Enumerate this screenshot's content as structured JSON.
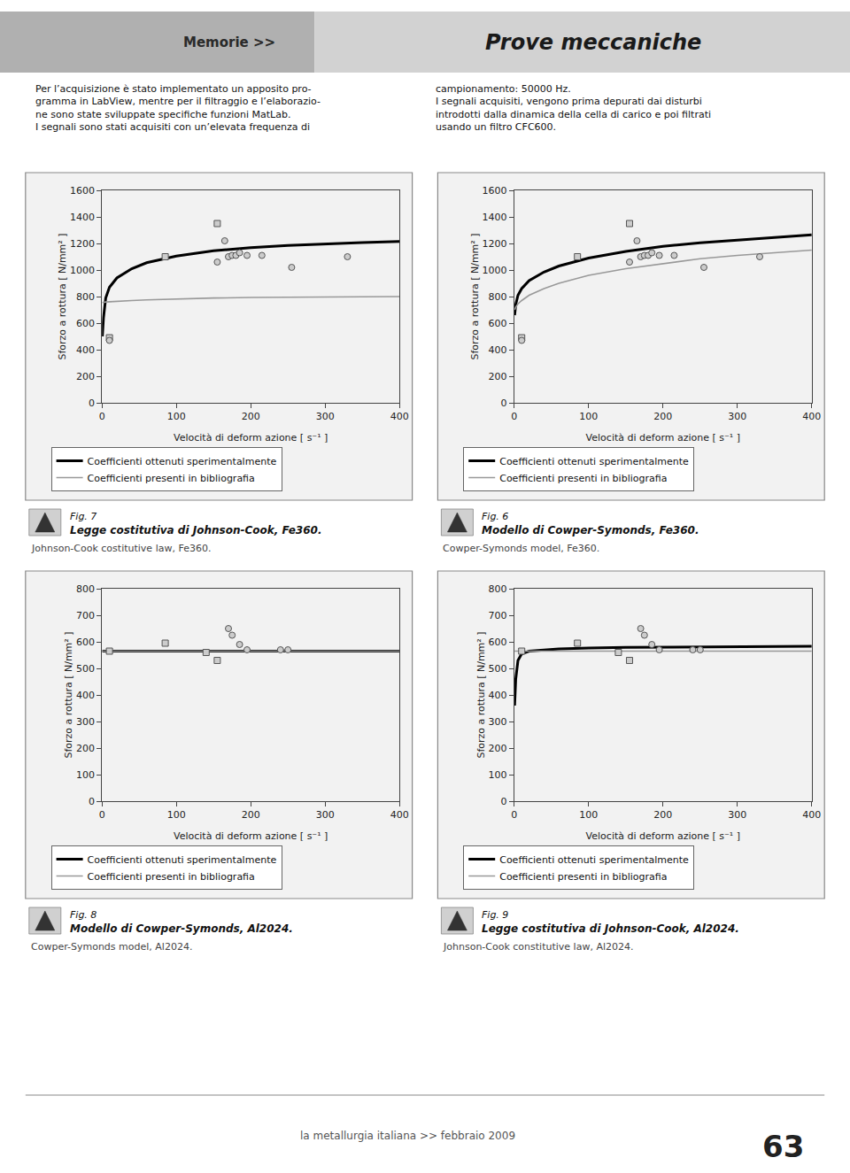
{
  "annotations": [
    "Memorie >>",
    "Prove meccaniche",
    "Per l’acquisizione è stato implementato un apposito pro-\ngramma in LabView, mentre per il filtraggio e l’elaborazio-\nne sono state sviluppate specifiche funzioni MatLab.\nI segnali sono stati acquisiti con un’elevata frequenza di",
    "campionamento: 50000 Hz.\nI segnali acquisiti, vengono prima depurati dai disturbi\nintrodotti dalla dinamica della cella di carico e poi filtrati\nusando un filtro CFC600.",
    "la metallurgia italiana >> febbraio 2009",
    "63"
  ],
  "chart_data": [
    {
      "type": "line",
      "title": "Legge costitutiva di Johnson-Cook, Fe360.",
      "subtitle": "Johnson-Cook costitutive law, Fe360.",
      "annotations": [
        "Fig. 7"
      ],
      "xlabel": "Velocità di deform azione [ s⁻¹ ]",
      "ylabel": "Sforzo a rottura [ N/mm² ]",
      "xlim": [
        0,
        400
      ],
      "xticks": [
        0,
        100,
        200,
        300,
        400
      ],
      "ylim": [
        0,
        1600
      ],
      "yticks": [
        0,
        200,
        400,
        600,
        800,
        1000,
        1200,
        1400,
        1600
      ],
      "grid": false,
      "legend": "bottom",
      "series": [
        {
          "name": "Coefficienti ottenuti sperimentalmente",
          "type": "line",
          "color": "#000000",
          "x": [
            0.5,
            2,
            5,
            10,
            20,
            40,
            60,
            80,
            100,
            150,
            200,
            250,
            300,
            350,
            400
          ],
          "values": [
            500,
            640,
            790,
            870,
            940,
            1010,
            1055,
            1080,
            1105,
            1145,
            1168,
            1185,
            1198,
            1207,
            1215
          ]
        },
        {
          "name": "Coefficienti presenti in bibliografia",
          "type": "line",
          "color": "#999999",
          "x": [
            0.5,
            2,
            5,
            10,
            20,
            40,
            60,
            80,
            100,
            150,
            200,
            250,
            300,
            350,
            400
          ],
          "values": [
            755,
            757,
            759,
            761,
            765,
            770,
            775,
            779,
            783,
            789,
            793,
            796,
            798,
            799,
            800
          ]
        },
        {
          "type": "scatter",
          "marker": "square",
          "color": "#cccccc",
          "x": [
            10,
            85,
            155
          ],
          "values": [
            490,
            1100,
            1350
          ]
        },
        {
          "type": "scatter",
          "marker": "circle",
          "color": "#cccccc",
          "x": [
            10,
            155,
            165,
            170,
            175,
            180,
            185,
            195,
            215,
            255,
            330
          ],
          "values": [
            470,
            1060,
            1220,
            1100,
            1110,
            1110,
            1130,
            1110,
            1110,
            1020,
            1100
          ]
        }
      ]
    },
    {
      "type": "line",
      "title": "Modello di Cowper-Symonds, Fe360.",
      "subtitle": "Cowper-Symonds model, Fe360.",
      "annotations": [
        "Fig. 6"
      ],
      "xlabel": "Velocità di deform azione [ s⁻¹ ]",
      "ylabel": "Sforzo a rottura [ N/mm² ]",
      "xlim": [
        0,
        400
      ],
      "xticks": [
        0,
        100,
        200,
        300,
        400
      ],
      "ylim": [
        0,
        1600
      ],
      "yticks": [
        0,
        200,
        400,
        600,
        800,
        1000,
        1200,
        1400,
        1600
      ],
      "grid": false,
      "legend": "bottom",
      "series": [
        {
          "name": "Coefficienti ottenuti sperimentalmente",
          "type": "line",
          "color": "#000000",
          "x": [
            0.5,
            2,
            5,
            10,
            20,
            40,
            60,
            80,
            100,
            150,
            200,
            250,
            300,
            350,
            400
          ],
          "values": [
            660,
            740,
            810,
            860,
            920,
            985,
            1030,
            1060,
            1090,
            1140,
            1178,
            1205,
            1225,
            1248,
            1265
          ]
        },
        {
          "name": "Coefficienti presenti in bibliografia",
          "type": "line",
          "color": "#999999",
          "x": [
            0.5,
            2,
            5,
            10,
            20,
            40,
            60,
            80,
            100,
            150,
            200,
            250,
            300,
            350,
            400
          ],
          "values": [
            700,
            720,
            745,
            770,
            810,
            860,
            900,
            930,
            960,
            1010,
            1050,
            1085,
            1110,
            1130,
            1150
          ]
        },
        {
          "type": "scatter",
          "marker": "square",
          "color": "#cccccc",
          "x": [
            10,
            85,
            155
          ],
          "values": [
            490,
            1100,
            1350
          ]
        },
        {
          "type": "scatter",
          "marker": "circle",
          "color": "#cccccc",
          "x": [
            10,
            155,
            165,
            170,
            175,
            180,
            185,
            195,
            215,
            255,
            330
          ],
          "values": [
            470,
            1060,
            1220,
            1100,
            1110,
            1110,
            1130,
            1110,
            1110,
            1020,
            1100
          ]
        }
      ]
    },
    {
      "type": "line",
      "title": "Modello di Cowper-Symonds, Al2024.",
      "subtitle": "Cowper-Symonds model, Al2024.",
      "annotations": [
        "Fig. 8"
      ],
      "xlabel": "Velocità di deform azione [ s⁻¹ ]",
      "ylabel": "Sforzo a rottura [ N/mm² ]",
      "xlim": [
        0,
        400
      ],
      "xticks": [
        0,
        100,
        200,
        300,
        400
      ],
      "ylim": [
        0,
        800
      ],
      "yticks": [
        0,
        100,
        200,
        300,
        400,
        500,
        600,
        700,
        800
      ],
      "grid": false,
      "legend": "bottom",
      "series": [
        {
          "name": "Coefficienti ottenuti sperimentalmente",
          "type": "line",
          "color": "#000000",
          "x": [
            0.5,
            2,
            5,
            10,
            20,
            40,
            60,
            80,
            100,
            150,
            200,
            250,
            300,
            350,
            400
          ],
          "values": [
            565,
            565,
            565,
            565,
            565,
            565,
            565,
            565,
            565,
            565,
            565,
            565,
            565,
            565,
            565
          ]
        },
        {
          "name": "Coefficienti presenti in bibliografia",
          "type": "line",
          "color": "#999999",
          "x": [
            0.5,
            2,
            5,
            10,
            20,
            40,
            60,
            80,
            100,
            150,
            200,
            250,
            300,
            350,
            400
          ],
          "values": [
            565,
            565,
            565,
            565,
            565,
            565,
            565,
            565,
            565,
            565,
            565,
            565,
            565,
            565,
            565
          ]
        },
        {
          "type": "scatter",
          "marker": "square",
          "color": "#cccccc",
          "x": [
            10,
            85,
            140,
            155
          ],
          "values": [
            565,
            595,
            560,
            530
          ]
        },
        {
          "type": "scatter",
          "marker": "circle",
          "color": "#cccccc",
          "x": [
            170,
            175,
            185,
            195,
            240,
            250
          ],
          "values": [
            650,
            625,
            590,
            570,
            570,
            570
          ]
        }
      ]
    },
    {
      "type": "line",
      "title": "Legge costitutiva di Johnson-Cook, Al2024.",
      "subtitle": "Johnson-Cook constitutive law, Al2024.",
      "annotations": [
        "Fig. 9"
      ],
      "xlabel": "Velocità di deform azione [ s⁻¹ ]",
      "ylabel": "Sforzo a rottura [ N/mm² ]",
      "xlim": [
        0,
        400
      ],
      "xticks": [
        0,
        100,
        200,
        300,
        400
      ],
      "ylim": [
        0,
        800
      ],
      "yticks": [
        0,
        100,
        200,
        300,
        400,
        500,
        600,
        700,
        800
      ],
      "grid": false,
      "legend": "bottom",
      "series": [
        {
          "name": "Coefficienti ottenuti sperimentalmente",
          "type": "line",
          "color": "#000000",
          "x": [
            0.5,
            2,
            5,
            10,
            20,
            40,
            60,
            80,
            100,
            150,
            200,
            250,
            300,
            350,
            400
          ],
          "values": [
            360,
            460,
            530,
            555,
            565,
            570,
            573,
            575,
            577,
            579,
            580,
            581,
            582,
            582,
            583
          ]
        },
        {
          "name": "Coefficienti presenti in bibliografia",
          "type": "line",
          "color": "#999999",
          "x": [
            0.5,
            2,
            5,
            10,
            20,
            40,
            60,
            80,
            100,
            150,
            200,
            250,
            300,
            350,
            400
          ],
          "values": [
            565,
            565,
            565,
            565,
            565,
            565,
            565,
            565,
            565,
            565,
            565,
            565,
            565,
            565,
            565
          ]
        },
        {
          "type": "scatter",
          "marker": "square",
          "color": "#cccccc",
          "x": [
            10,
            85,
            140,
            155
          ],
          "values": [
            565,
            595,
            560,
            530
          ]
        },
        {
          "type": "scatter",
          "marker": "circle",
          "color": "#cccccc",
          "x": [
            170,
            175,
            185,
            195,
            240,
            250
          ],
          "values": [
            650,
            625,
            590,
            570,
            570,
            570
          ]
        }
      ]
    }
  ]
}
